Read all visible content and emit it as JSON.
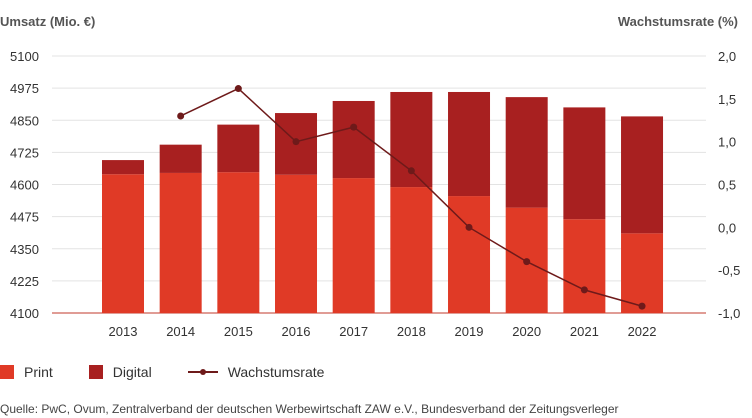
{
  "chart_data": {
    "type": "bar",
    "y_left_label": "Umsatz (Mio. €)",
    "y_right_label": "Wachstumsrate (%)",
    "categories": [
      "2013",
      "2014",
      "2015",
      "2016",
      "2017",
      "2018",
      "2019",
      "2020",
      "2021",
      "2022"
    ],
    "ylim_left": [
      4100,
      5100
    ],
    "yticks_left": [
      "5100",
      "4975",
      "4850",
      "4725",
      "4600",
      "4475",
      "4350",
      "4225",
      "4100"
    ],
    "ylim_right": [
      -1.0,
      2.0
    ],
    "yticks_right": [
      "2,0",
      "1,5",
      "1,0",
      "0,5",
      "0,0",
      "-0,5",
      "-1,0"
    ],
    "series": [
      {
        "name": "Print",
        "kind": "bar",
        "color": "#e03a26",
        "values": [
          4640,
          4645,
          4648,
          4638,
          4625,
          4590,
          4555,
          4510,
          4465,
          4410
        ]
      },
      {
        "name": "Digital",
        "kind": "bar",
        "color": "#a82020",
        "values": [
          55,
          110,
          185,
          240,
          300,
          370,
          405,
          430,
          435,
          455
        ]
      },
      {
        "name": "Wachstumsrate",
        "kind": "line",
        "color": "#6e1a1a",
        "values": [
          null,
          1.3,
          1.62,
          1.0,
          1.17,
          0.66,
          0.0,
          -0.4,
          -0.73,
          -0.92
        ]
      }
    ],
    "grid": true,
    "legend_position": "bottom-left"
  },
  "source": "Quelle: PwC, Ovum, Zentralverband der deutschen Werbewirtschaft ZAW e.V., Bundesverband der Zeitungsverleger"
}
